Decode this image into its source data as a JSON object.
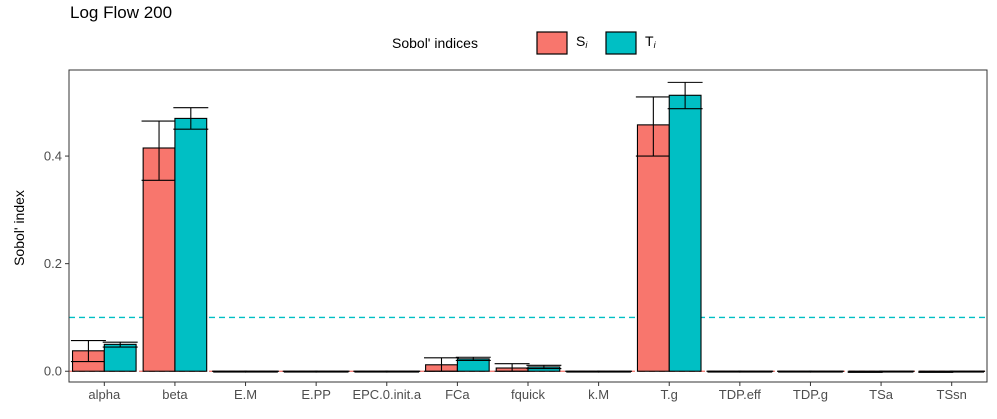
{
  "chart_data": {
    "type": "bar",
    "title": "Log Flow 200",
    "ylabel": "Sobol' index",
    "xlabel": "",
    "ylim": [
      -0.02,
      0.56
    ],
    "yticks": [
      0.0,
      0.2,
      0.4
    ],
    "ytick_labels": [
      "0.0",
      "0.2",
      "0.4"
    ],
    "grid": false,
    "legend": {
      "title": "Sobol' indices",
      "position": "top",
      "entries": [
        "S_i",
        "T_i"
      ],
      "labels": [
        {
          "main": "S",
          "sub": "i"
        },
        {
          "main": "T",
          "sub": "i"
        }
      ]
    },
    "colors": {
      "S_i": "#F8766D",
      "T_i": "#00BFC4",
      "bar_outline": "#000000"
    },
    "categories": [
      "alpha",
      "beta",
      "E.M",
      "E.PP",
      "EPC.0.init.a",
      "FCa",
      "fquick",
      "k.M",
      "T.g",
      "TDP.eff",
      "TDP.g",
      "TSa",
      "TSsn"
    ],
    "series": [
      {
        "name": "S_i",
        "values": [
          0.038,
          0.415,
          0.0,
          0.0,
          0.0,
          0.012,
          0.006,
          0.0,
          0.458,
          0.0,
          0.0,
          0.0,
          0.0
        ],
        "error_low": [
          0.018,
          0.355,
          0.0,
          0.0,
          0.0,
          0.0,
          0.0,
          0.0,
          0.4,
          0.0,
          0.0,
          -0.002,
          -0.002
        ],
        "error_high": [
          0.057,
          0.465,
          0.0,
          0.0,
          0.0,
          0.025,
          0.014,
          0.0,
          0.51,
          0.0,
          0.0,
          0.0,
          0.0
        ]
      },
      {
        "name": "T_i",
        "values": [
          0.05,
          0.47,
          0.0,
          0.0,
          0.0,
          0.023,
          0.008,
          0.0,
          0.513,
          0.0,
          0.0,
          0.0,
          0.0
        ],
        "error_low": [
          0.045,
          0.45,
          0.0,
          0.0,
          0.0,
          0.02,
          0.005,
          0.0,
          0.488,
          0.0,
          0.0,
          0.0,
          0.0
        ],
        "error_high": [
          0.054,
          0.49,
          0.0,
          0.0,
          0.0,
          0.026,
          0.011,
          0.0,
          0.537,
          0.0,
          0.0,
          0.0,
          0.0
        ]
      }
    ],
    "reference_lines": [
      {
        "y": 0.1,
        "color": "#00BFC4",
        "style": "dashed"
      },
      {
        "y": 0.0,
        "color": "#F8766D",
        "style": "dashed"
      }
    ]
  }
}
